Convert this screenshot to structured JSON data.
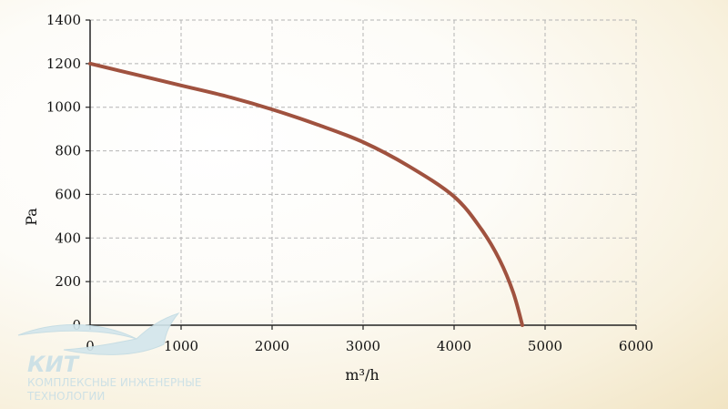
{
  "chart_data": {
    "type": "line",
    "xlabel": "m³/h",
    "ylabel": "Pa",
    "xlim": [
      0,
      6000
    ],
    "ylim": [
      0,
      1400
    ],
    "x_ticks": [
      "0",
      "1000",
      "2000",
      "3000",
      "4000",
      "5000",
      "6000"
    ],
    "y_ticks": [
      "0",
      "200",
      "400",
      "600",
      "800",
      "1000",
      "1200",
      "1400"
    ],
    "grid": true,
    "series": [
      {
        "color": "#a0523f",
        "x": [
          0,
          500,
          1000,
          1500,
          2000,
          2500,
          3000,
          3500,
          4000,
          4300,
          4500,
          4650,
          4750
        ],
        "y": [
          1200,
          1150,
          1100,
          1050,
          990,
          920,
          840,
          730,
          590,
          440,
          300,
          150,
          0
        ]
      }
    ]
  },
  "logo": {
    "name": "КИТ",
    "line1": "КОМПЛЕКСНЫЕ ИНЖЕНЕРНЫЕ",
    "line2": "ТЕХНОЛОГИИ"
  }
}
